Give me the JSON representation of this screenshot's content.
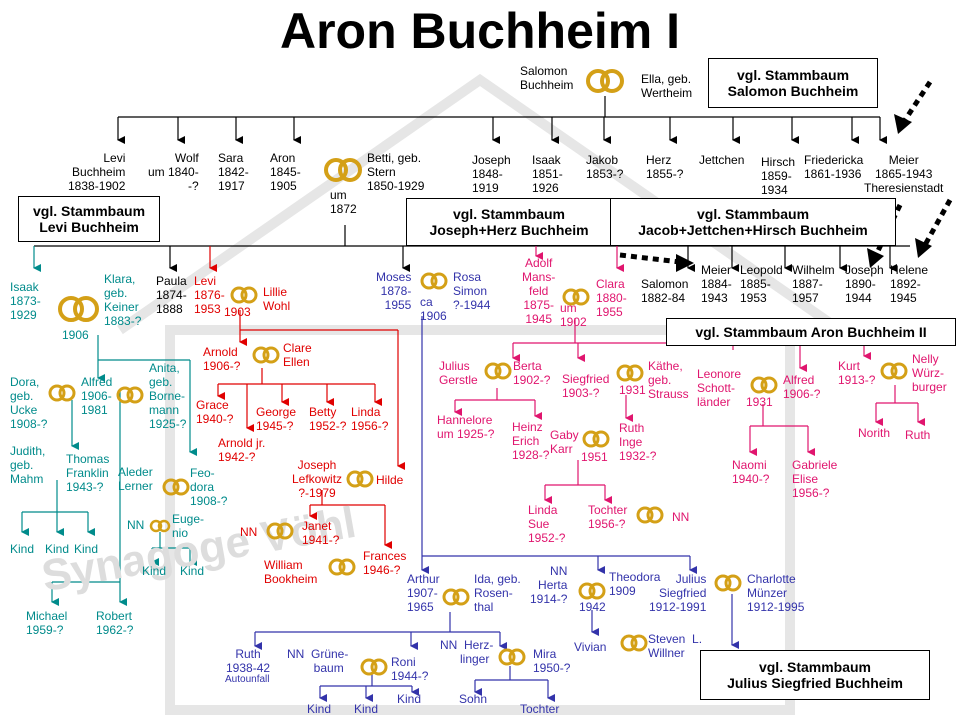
{
  "title": "Aron Buchheim I",
  "watermark": "Synagoge Vöhl",
  "ring_color": "#d4a017",
  "line_colors": {
    "black": "#000000",
    "teal": "#008b8b",
    "red": "#e00000",
    "blue": "#3333aa",
    "pink": "#e0156e"
  },
  "boxes": {
    "salomon": "vgl. Stammbaum\nSalomon Buchheim",
    "levi": "vgl. Stammbaum\nLevi Buchheim",
    "joseph_herz": "vgl. Stammbaum\nJoseph+Herz Buchheim",
    "jacob": "vgl. Stammbaum\nJacob+Jettchen+Hirsch Buchheim",
    "aron2": "vgl. Stammbaum Aron Buchheim II",
    "julius": "vgl. Stammbaum\nJulius Siegfried Buchheim"
  },
  "people": {
    "salomon": "Salomon\nBuchheim",
    "ella": "Ella, geb.\nWertheim",
    "levi": "Levi\nBuchheim\n1838-1902",
    "wolf": "Wolf\num 1840-\n-?",
    "sara": "Sara\n1842-\n1917",
    "aron": "Aron\n1845-\n1905",
    "um1872": "um\n1872",
    "betti": "Betti, geb.\nStern\n1850-1929",
    "joseph": "Joseph\n1848-\n1919",
    "isaak": "Isaak\n1851-\n1926",
    "jakob": "Jakob\n1853-?",
    "herz": "Herz\n1855-?",
    "jettchen": "Jettchen",
    "hirsch": "Hirsch\n1859-\n1934",
    "friedericka": "Friedericka\n1861-1936",
    "meier": "Meier\n1865-1943\nTheresienstadt",
    "isaak2": "Isaak\n1873-\n1929",
    "klara": "Klara,\ngeb.\nKeiner\n1883-?",
    "y1906": "1906",
    "paula": "Paula\n1874-\n1888",
    "levi2": "Levi\n1876-\n1953",
    "y1903": "1903",
    "lillie": "Lillie\nWohl",
    "moses": "Moses\n1878-\n1955",
    "ca1906": "ca\n1906",
    "rosa": "Rosa\nSimon\n?-1944",
    "adolf": "Adolf\nMans-\nfeld\n1875-\n1945",
    "um1902": "um\n1902",
    "clara": "Clara\n1880-\n1955",
    "salomon2": "Salomon\n1882-84",
    "meier2": "Meier\n1884-\n1943",
    "leopold": "Leopold\n1885-\n1953",
    "wilhelm": "Wilhelm\n1887-\n1957",
    "joseph2": "Joseph\n1890-\n1944",
    "helene": "Helene\n1892-\n1945",
    "dora": "Dora,\ngeb.\nUcke\n1908-?",
    "alfred": "Alfred\n1906-\n1981",
    "anita": "Anita,\ngeb.\nBorne-\nmann\n1925-?",
    "judith": "Judith,\ngeb.\nMahm",
    "thomas": "Thomas\nFranklin\n1943-?",
    "aleder": "Aleder\nLerner",
    "feodora": "Feo-\ndora\n1908-?",
    "nn1": "NN",
    "eugenio": "Euge-\nnio",
    "kind1": "Kind",
    "kind2": "Kind",
    "kind3": "Kind",
    "kind4": "Kind",
    "kind5": "Kind",
    "michael": "Michael\n1959-?",
    "robert": "Robert\n1962-?",
    "arnold": "Arnold\n1906-?",
    "clare": "Clare\nEllen",
    "grace": "Grace\n1940-?",
    "george": "George\n1945-?",
    "betty": "Betty\n1952-?",
    "linda": "Linda\n1956-?",
    "arnoldjr": "Arnold jr.\n1942-?",
    "josephlef": "Joseph\nLefkowitz\n?-1979",
    "hilde": "Hilde",
    "nn2": "NN",
    "janet": "Janet\n1941-?",
    "william": "William\nBookheim",
    "frances": "Frances\n1946-?",
    "julius": "Julius\nGerstle",
    "berta": "Berta\n1902-?",
    "hannelore": "Hannelore\num 1925-?",
    "heinz": "Heinz\nErich\n1928-?",
    "siegfried": "Siegfried\n1903-?",
    "y1931a": "1931",
    "kaethe": "Käthe,\ngeb.\nStrauss",
    "gaby": "Gaby\nKarr",
    "y1951": "1951",
    "ruth": "Ruth\nInge\n1932-?",
    "lindasue": "Linda\nSue\n1952-?",
    "tochter": "Tochter\n1956-?",
    "nn3": "NN",
    "leonore": "Leonore\nSchott-\nländer",
    "y1931b": "1931",
    "alfred2": "Alfred\n1906-?",
    "naomi": "Naomi\n1940-?",
    "gabriele": "Gabriele\nElise\n1956-?",
    "kurt": "Kurt\n1913-?",
    "nelly": "Nelly\nWürz-\nburger",
    "norith": "Norith",
    "ruth2": "Ruth",
    "arthur": "Arthur\n1907-\n1965",
    "ida": "Ida, geb.\nRosen-\nthal",
    "nnherta": "NN\nHerta\n1914-?",
    "y1942": "1942",
    "theodora": "Theodora\n1909",
    "juliuss": "Julius\nSiegfried\n1912-1991",
    "charlotte": "Charlotte\nMünzer\n1912-1995",
    "vivian": "Vivian",
    "steven": "Steven  L.\nWillner",
    "ruth3": "Ruth\n1938-42",
    "autounfall": "Autounfall",
    "nngruene": "NN  Grüne-\n        baum",
    "roni": "Roni\n1944-?",
    "nnherz": "NN  Herz-\n      linger",
    "mira": "Mira\n1950-?",
    "sohn": "Sohn",
    "tochter2": "Tochter",
    "kind6": "Kind",
    "kind7": "Kind",
    "kind8": "Kind"
  }
}
